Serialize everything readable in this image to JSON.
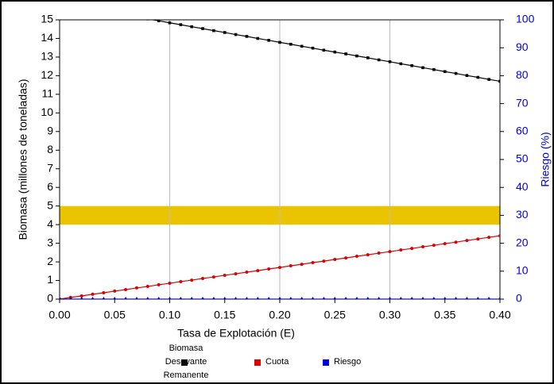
{
  "chart_data": {
    "type": "line",
    "xlabel": "Tasa de Explotación (E)",
    "ylabel": "Biomasa (millones de toneladas)",
    "y2label": "Riesgo (%)",
    "x": [
      0,
      0.01,
      0.02,
      0.03,
      0.04,
      0.05,
      0.06,
      0.07,
      0.08,
      0.09,
      0.1,
      0.11,
      0.12,
      0.13,
      0.14,
      0.15,
      0.16,
      0.17,
      0.18,
      0.19,
      0.2,
      0.21,
      0.22,
      0.23,
      0.24,
      0.25,
      0.26,
      0.27,
      0.28,
      0.29,
      0.3,
      0.31,
      0.32,
      0.33,
      0.34,
      0.35,
      0.36,
      0.37,
      0.38,
      0.39,
      0.4
    ],
    "series": [
      {
        "name": "Biomasa Desovante Remanente",
        "color": "#000000",
        "marker": "square",
        "values": [
          15.89,
          15.79,
          15.68,
          15.58,
          15.47,
          15.37,
          15.26,
          15.16,
          15.05,
          14.95,
          14.84,
          14.74,
          14.63,
          14.53,
          14.42,
          14.32,
          14.21,
          14.11,
          14.0,
          13.9,
          13.79,
          13.69,
          13.58,
          13.48,
          13.37,
          13.27,
          13.17,
          13.06,
          12.96,
          12.85,
          12.75,
          12.64,
          12.54,
          12.43,
          12.33,
          12.22,
          12.12,
          12.01,
          11.91,
          11.8,
          11.7
        ]
      },
      {
        "name": "Cuota",
        "color": "#e00000",
        "marker": "circle",
        "values": [
          0,
          0.09,
          0.17,
          0.26,
          0.34,
          0.43,
          0.51,
          0.6,
          0.68,
          0.77,
          0.85,
          0.94,
          1.02,
          1.11,
          1.19,
          1.28,
          1.36,
          1.45,
          1.53,
          1.62,
          1.7,
          1.79,
          1.87,
          1.96,
          2.04,
          2.13,
          2.21,
          2.3,
          2.38,
          2.47,
          2.55,
          2.64,
          2.72,
          2.81,
          2.89,
          2.98,
          3.06,
          3.15,
          3.23,
          3.32,
          3.4
        ]
      },
      {
        "name": "Riesgo",
        "color": "#0000e0",
        "marker": "triangle",
        "axis": "y2",
        "values": [
          0,
          0,
          0,
          0,
          0,
          0,
          0,
          0,
          0,
          0,
          0,
          0,
          0,
          0,
          0,
          0,
          0,
          0,
          0,
          0,
          0,
          0,
          0,
          0,
          0,
          0,
          0,
          0,
          0,
          0,
          0,
          0,
          0,
          0,
          0,
          0,
          0,
          0,
          0,
          0,
          0
        ]
      }
    ],
    "band": {
      "range": [
        4,
        5
      ],
      "color": "#ebc400"
    },
    "xlim": [
      0,
      0.4
    ],
    "xticks": [
      {
        "value": 0,
        "label": "0.00"
      },
      {
        "value": 0.05,
        "label": "0.05"
      },
      {
        "value": 0.1,
        "label": "0.10"
      },
      {
        "value": 0.15,
        "label": "0.15"
      },
      {
        "value": 0.2,
        "label": "0.20"
      },
      {
        "value": 0.25,
        "label": "0.25"
      },
      {
        "value": 0.3,
        "label": "0.30"
      },
      {
        "value": 0.35,
        "label": "0.35"
      },
      {
        "value": 0.4,
        "label": "0.40"
      }
    ],
    "xgrid": [
      0.1,
      0.2,
      0.3
    ],
    "ylim": [
      0,
      15
    ],
    "yticks": [
      0,
      1,
      2,
      3,
      4,
      5,
      6,
      7,
      8,
      9,
      10,
      11,
      12,
      13,
      14,
      15
    ],
    "y2lim": [
      0,
      100
    ],
    "y2ticks": [
      0,
      10,
      20,
      30,
      40,
      50,
      60,
      70,
      80,
      90,
      100
    ],
    "y2color": "#0000e0",
    "legend": "bottom"
  }
}
